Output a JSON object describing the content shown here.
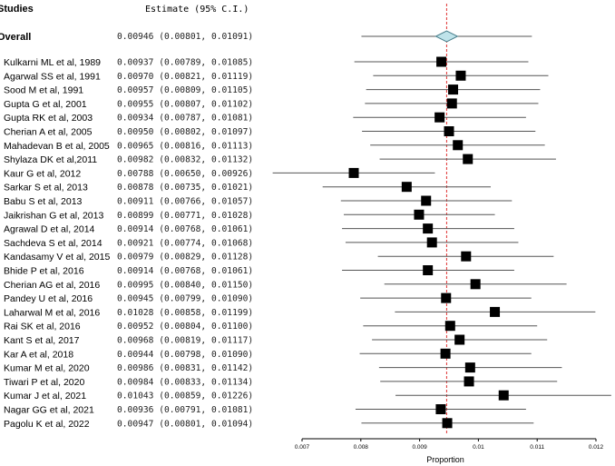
{
  "chart_data": {
    "type": "forest",
    "header": {
      "studies": "Studies",
      "estimate": "Estimate (95% C.I.)"
    },
    "overall": {
      "label": "Overall",
      "estimate": 0.00946,
      "lower": 0.00801,
      "upper": 0.01091,
      "text": "0.00946 (0.00801, 0.01091)"
    },
    "studies": [
      {
        "label": "Kulkarni ML et al, 1989",
        "estimate": 0.00937,
        "lower": 0.00789,
        "upper": 0.01085,
        "text": "0.00937 (0.00789, 0.01085)"
      },
      {
        "label": "Agarwal SS et al, 1991",
        "estimate": 0.0097,
        "lower": 0.00821,
        "upper": 0.01119,
        "text": "0.00970 (0.00821, 0.01119)"
      },
      {
        "label": "Sood M et al, 1991",
        "estimate": 0.00957,
        "lower": 0.00809,
        "upper": 0.01105,
        "text": "0.00957 (0.00809, 0.01105)"
      },
      {
        "label": "Gupta G et al, 2001",
        "estimate": 0.00955,
        "lower": 0.00807,
        "upper": 0.01102,
        "text": "0.00955 (0.00807, 0.01102)"
      },
      {
        "label": "Gupta RK et al, 2003",
        "estimate": 0.00934,
        "lower": 0.00787,
        "upper": 0.01081,
        "text": "0.00934 (0.00787, 0.01081)"
      },
      {
        "label": "Cherian A et al, 2005",
        "estimate": 0.0095,
        "lower": 0.00802,
        "upper": 0.01097,
        "text": "0.00950 (0.00802, 0.01097)"
      },
      {
        "label": "Mahadevan B et al, 2005",
        "estimate": 0.00965,
        "lower": 0.00816,
        "upper": 0.01113,
        "text": "0.00965 (0.00816, 0.01113)"
      },
      {
        "label": "Shylaza DK et al,2011",
        "estimate": 0.00982,
        "lower": 0.00832,
        "upper": 0.01132,
        "text": "0.00982 (0.00832, 0.01132)"
      },
      {
        "label": "Kaur G et al, 2012",
        "estimate": 0.00788,
        "lower": 0.0065,
        "upper": 0.00926,
        "text": "0.00788 (0.00650, 0.00926)"
      },
      {
        "label": "Sarkar S et al, 2013",
        "estimate": 0.00878,
        "lower": 0.00735,
        "upper": 0.01021,
        "text": "0.00878 (0.00735, 0.01021)"
      },
      {
        "label": "Babu S et al, 2013",
        "estimate": 0.00911,
        "lower": 0.00766,
        "upper": 0.01057,
        "text": "0.00911 (0.00766, 0.01057)"
      },
      {
        "label": "Jaikrishan G et al, 2013",
        "estimate": 0.00899,
        "lower": 0.00771,
        "upper": 0.01028,
        "text": "0.00899 (0.00771, 0.01028)"
      },
      {
        "label": "Agrawal D et al, 2014",
        "estimate": 0.00914,
        "lower": 0.00768,
        "upper": 0.01061,
        "text": "0.00914 (0.00768, 0.01061)"
      },
      {
        "label": "Sachdeva S et al, 2014",
        "estimate": 0.00921,
        "lower": 0.00774,
        "upper": 0.01068,
        "text": "0.00921 (0.00774, 0.01068)"
      },
      {
        "label": "Kandasamy V et al, 2015",
        "estimate": 0.00979,
        "lower": 0.00829,
        "upper": 0.01128,
        "text": "0.00979 (0.00829, 0.01128)"
      },
      {
        "label": "Bhide P et al, 2016",
        "estimate": 0.00914,
        "lower": 0.00768,
        "upper": 0.01061,
        "text": "0.00914 (0.00768, 0.01061)"
      },
      {
        "label": "Cherian AG et al, 2016",
        "estimate": 0.00995,
        "lower": 0.0084,
        "upper": 0.0115,
        "text": "0.00995 (0.00840, 0.01150)"
      },
      {
        "label": "Pandey U et al, 2016",
        "estimate": 0.00945,
        "lower": 0.00799,
        "upper": 0.0109,
        "text": "0.00945 (0.00799, 0.01090)"
      },
      {
        "label": "Laharwal M et al, 2016",
        "estimate": 0.01028,
        "lower": 0.00858,
        "upper": 0.01199,
        "text": "0.01028 (0.00858, 0.01199)"
      },
      {
        "label": "Rai SK et al, 2016",
        "estimate": 0.00952,
        "lower": 0.00804,
        "upper": 0.011,
        "text": "0.00952 (0.00804, 0.01100)"
      },
      {
        "label": "Kant S et al, 2017",
        "estimate": 0.00968,
        "lower": 0.00819,
        "upper": 0.01117,
        "text": "0.00968 (0.00819, 0.01117)"
      },
      {
        "label": "Kar A et al, 2018",
        "estimate": 0.00944,
        "lower": 0.00798,
        "upper": 0.0109,
        "text": "0.00944 (0.00798, 0.01090)"
      },
      {
        "label": "Kumar M et al, 2020",
        "estimate": 0.00986,
        "lower": 0.00831,
        "upper": 0.01142,
        "text": "0.00986 (0.00831, 0.01142)"
      },
      {
        "label": "Tiwari P et al, 2020",
        "estimate": 0.00984,
        "lower": 0.00833,
        "upper": 0.01134,
        "text": "0.00984 (0.00833, 0.01134)"
      },
      {
        "label": "Kumar J et al, 2021",
        "estimate": 0.01043,
        "lower": 0.00859,
        "upper": 0.01226,
        "text": "0.01043 (0.00859, 0.01226)"
      },
      {
        "label": "Nagar GG et al, 2021",
        "estimate": 0.00936,
        "lower": 0.00791,
        "upper": 0.01081,
        "text": "0.00936 (0.00791, 0.01081)"
      },
      {
        "label": "Pagolu K et al, 2022",
        "estimate": 0.00947,
        "lower": 0.00801,
        "upper": 0.01094,
        "text": "0.00947 (0.00801, 0.01094)"
      }
    ],
    "x_axis": {
      "label": "Proportion",
      "range": [
        0.007,
        0.012
      ],
      "ticks": [
        0.007,
        0.008,
        0.009,
        0.01,
        0.011,
        0.012
      ],
      "tick_labels": [
        "0.007",
        "0.008",
        "0.009",
        "0.01",
        "0.011",
        "0.012"
      ]
    },
    "reference_line": 0.00946,
    "colors": {
      "square": "#000000",
      "whisker": "#555555",
      "diamond_fill": "#bfe3ea",
      "diamond_stroke": "#4a7f8c",
      "reference": "#e03030"
    }
  }
}
